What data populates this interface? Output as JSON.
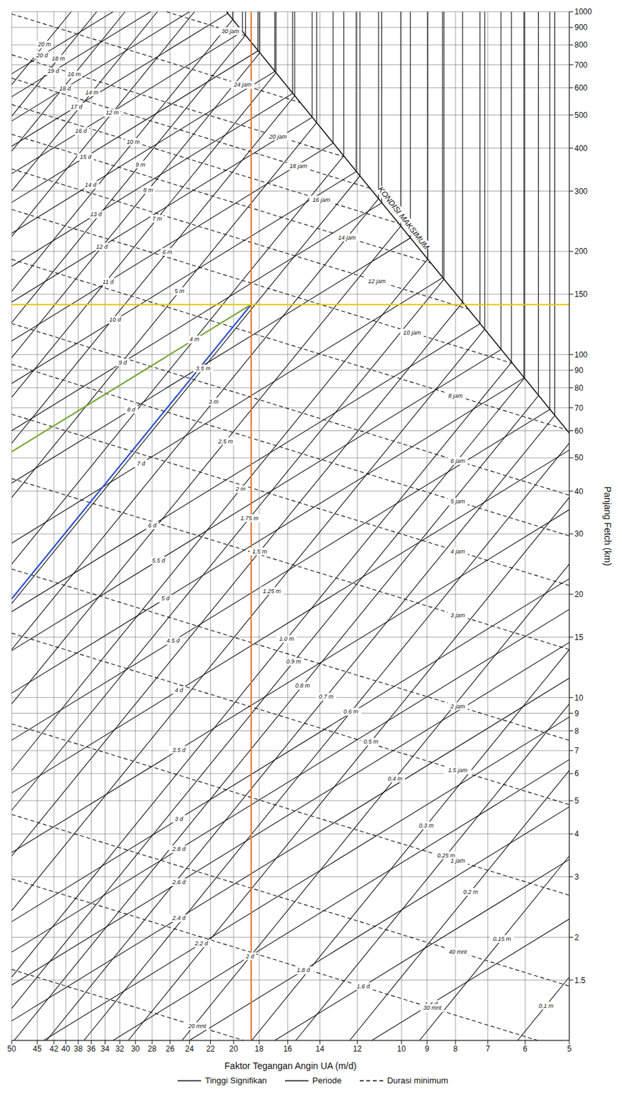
{
  "chart_data": {
    "type": "line",
    "xlabel": "Faktor Tegangan Angin UA (m/d)",
    "ylabel": "Panjang Fetch (km)",
    "log": true,
    "grid": true,
    "legend": "bottom",
    "xlim": [
      50,
      5
    ],
    "xticks": [
      50,
      45,
      42,
      40,
      38,
      36,
      34,
      32,
      30,
      28,
      26,
      24,
      22,
      20,
      18,
      16,
      14,
      12,
      10,
      9,
      8,
      7,
      6,
      5
    ],
    "ylim": [
      1,
      1000
    ],
    "yticks": [
      1.5,
      2,
      3,
      4,
      5,
      6,
      7,
      8,
      9,
      10,
      15,
      20,
      30,
      40,
      50,
      60,
      70,
      80,
      90,
      100,
      150,
      200,
      300,
      400,
      500,
      600,
      700,
      800,
      900,
      1000
    ],
    "series": [
      {
        "name": "Tinggi Signifikan",
        "color": "#111111",
        "line_style": "solid",
        "lines": [
          {
            "label": "0.1 m",
            "x": [
              6.19,
              5
            ],
            "y": [
              1,
              1.53
            ]
          },
          {
            "label": "0.15 m",
            "x": [
              9.28,
              5
            ],
            "y": [
              1,
              3.45
            ]
          },
          {
            "label": "0.2 m",
            "x": [
              12.38,
              5
            ],
            "y": [
              1,
              6.13
            ]
          },
          {
            "label": "0.25 m",
            "x": [
              15.47,
              5
            ],
            "y": [
              1,
              9.58
            ]
          },
          {
            "label": "0.3 m",
            "x": [
              18.56,
              5
            ],
            "y": [
              1,
              13.8
            ]
          },
          {
            "label": "0.4 m",
            "x": [
              24.75,
              5
            ],
            "y": [
              1,
              24.5
            ]
          },
          {
            "label": "0.5 m",
            "x": [
              30.9,
              5
            ],
            "y": [
              1,
              38.3
            ]
          },
          {
            "label": "0.6 m",
            "x": [
              37.1,
              5
            ],
            "y": [
              1,
              55.2
            ]
          },
          {
            "label": "0.7 m",
            "x": [
              43.3,
              5.31,
              5.31
            ],
            "y": [
              1,
              66.4,
              1000
            ]
          },
          {
            "label": "0.8 m",
            "x": [
              49.5,
              5.68,
              5.68
            ],
            "y": [
              1,
              75.9,
              1000
            ]
          },
          {
            "label": "0.9 m",
            "x": [
              50,
              6.02,
              6.02
            ],
            "y": [
              1.24,
              85.4,
              1000
            ]
          },
          {
            "label": "1.0 m",
            "x": [
              50,
              6.35,
              6.35
            ],
            "y": [
              1.53,
              94.9,
              1000
            ]
          },
          {
            "label": "1.25 m",
            "x": [
              50,
              7.09,
              7.09
            ],
            "y": [
              2.39,
              118.6,
              1000
            ]
          },
          {
            "label": "1.5 m",
            "x": [
              50,
              7.77,
              7.77
            ],
            "y": [
              3.45,
              142,
              1000
            ]
          },
          {
            "label": "1.75 m",
            "x": [
              50,
              8.39,
              8.39
            ],
            "y": [
              4.69,
              166,
              1000
            ]
          },
          {
            "label": "2 m",
            "x": [
              50,
              8.97,
              8.97
            ],
            "y": [
              6.13,
              190,
              1000
            ]
          },
          {
            "label": "2.5 m",
            "x": [
              50,
              10.03,
              10.03
            ],
            "y": [
              9.58,
              237,
              1000
            ]
          },
          {
            "label": "3 m",
            "x": [
              50,
              10.99,
              10.99
            ],
            "y": [
              13.8,
              285,
              1000
            ]
          },
          {
            "label": "3.5 m",
            "x": [
              50,
              11.87,
              11.87
            ],
            "y": [
              18.8,
              332,
              1000
            ]
          },
          {
            "label": "4 m",
            "x": [
              50,
              12.69,
              12.69
            ],
            "y": [
              24.5,
              380,
              1000
            ]
          },
          {
            "label": "5 m",
            "x": [
              50,
              14.19,
              14.19
            ],
            "y": [
              38.3,
              475,
              1000
            ]
          },
          {
            "label": "6 m",
            "x": [
              50,
              15.54,
              15.54
            ],
            "y": [
              55.2,
              569,
              1000
            ]
          },
          {
            "label": "7 m",
            "x": [
              50,
              16.79,
              16.79
            ],
            "y": [
              75.1,
              664,
              1000
            ]
          },
          {
            "label": "8 m",
            "x": [
              50,
              17.95,
              17.95
            ],
            "y": [
              98,
              759,
              1000
            ]
          },
          {
            "label": "9 m",
            "x": [
              50,
              19.04,
              19.04
            ],
            "y": [
              124,
              854,
              1000
            ]
          },
          {
            "label": "10 m",
            "x": [
              50,
              20.07,
              20.07
            ],
            "y": [
              153,
              949,
              1000
            ]
          },
          {
            "label": "12 m",
            "x": [
              50,
              23.5
            ],
            "y": [
              221,
              1000
            ]
          },
          {
            "label": "14 m",
            "x": [
              50,
              27.4
            ],
            "y": [
              300,
              1000
            ]
          },
          {
            "label": "16 m",
            "x": [
              50,
              31.3
            ],
            "y": [
              392,
              1000
            ]
          },
          {
            "label": "18 m",
            "x": [
              50,
              35.2
            ],
            "y": [
              496,
              1000
            ]
          },
          {
            "label": "20 m",
            "x": [
              50,
              39.1
            ],
            "y": [
              613,
              1000
            ]
          }
        ]
      },
      {
        "name": "Periode",
        "color": "#111111",
        "line_style": "solid",
        "lines": [
          {
            "label": "1.4 d",
            "x": [
              11.3,
              5
            ],
            "y": [
              1,
              2.26
            ]
          },
          {
            "label": "1.6 d",
            "x": [
              16.87,
              5
            ],
            "y": [
              1,
              3.37
            ]
          },
          {
            "label": "1.8 d",
            "x": [
              24.0,
              5
            ],
            "y": [
              1,
              4.8
            ]
          },
          {
            "label": "2 d",
            "x": [
              32.9,
              5
            ],
            "y": [
              1,
              6.59
            ]
          },
          {
            "label": "2.2 d",
            "x": [
              43.8,
              5
            ],
            "y": [
              1,
              8.77
            ]
          },
          {
            "label": "2.4 d",
            "x": [
              50,
              5
            ],
            "y": [
              1.14,
              11.39
            ]
          },
          {
            "label": "2.6 d",
            "x": [
              50,
              5
            ],
            "y": [
              1.45,
              14.48
            ]
          },
          {
            "label": "2.8 d",
            "x": [
              50,
              5
            ],
            "y": [
              1.81,
              18.08
            ]
          },
          {
            "label": "3 d",
            "x": [
              50,
              5
            ],
            "y": [
              2.22,
              22.2
            ]
          },
          {
            "label": "3.5 d",
            "x": [
              50,
              5
            ],
            "y": [
              3.53,
              35.3
            ]
          },
          {
            "label": "4 d",
            "x": [
              50,
              5
            ],
            "y": [
              5.27,
              52.7
            ]
          },
          {
            "label": "4.5 d",
            "x": [
              50,
              5.42,
              5.42
            ],
            "y": [
              7.51,
              69.2,
              1000
            ]
          },
          {
            "label": "5 d",
            "x": [
              50,
              6.03,
              6.03
            ],
            "y": [
              10.3,
              85.5,
              1000
            ]
          },
          {
            "label": "5.5 d",
            "x": [
              50,
              6.63,
              6.63
            ],
            "y": [
              13.7,
              103.4,
              1000
            ]
          },
          {
            "label": "6 d",
            "x": [
              50,
              7.23,
              7.23
            ],
            "y": [
              17.8,
              123,
              1000
            ]
          },
          {
            "label": "7 d",
            "x": [
              50,
              8.44,
              8.44
            ],
            "y": [
              28.2,
              167.5,
              1000
            ]
          },
          {
            "label": "8 d",
            "x": [
              50,
              9.64,
              9.64
            ],
            "y": [
              42.2,
              218.8,
              1000
            ]
          },
          {
            "label": "9 d",
            "x": [
              50,
              10.85,
              10.85
            ],
            "y": [
              60,
              276.9,
              1000
            ]
          },
          {
            "label": "10 d",
            "x": [
              50,
              12.05,
              12.05
            ],
            "y": [
              82.4,
              341.8,
              1000
            ]
          },
          {
            "label": "11 d",
            "x": [
              50,
              13.26,
              13.26
            ],
            "y": [
              109.6,
              413.6,
              1000
            ]
          },
          {
            "label": "12 d",
            "x": [
              50,
              14.46,
              14.46
            ],
            "y": [
              142.3,
              492.2,
              1000
            ]
          },
          {
            "label": "13 d",
            "x": [
              50,
              15.67,
              15.67
            ],
            "y": [
              181,
              577.6,
              1000
            ]
          },
          {
            "label": "14 d",
            "x": [
              50,
              16.87,
              16.87
            ],
            "y": [
              226,
              670,
              1000
            ]
          },
          {
            "label": "15 d",
            "x": [
              50,
              18.08,
              18.08
            ],
            "y": [
              278,
              769,
              1000
            ]
          },
          {
            "label": "16 d",
            "x": [
              50,
              19.28,
              19.28
            ],
            "y": [
              337,
              875,
              1000
            ]
          },
          {
            "label": "17 d",
            "x": [
              50,
              20.49,
              20.49
            ],
            "y": [
              405,
              988,
              1000
            ]
          },
          {
            "label": "18 d",
            "x": [
              50,
              24
            ],
            "y": [
              480,
              1000
            ]
          },
          {
            "label": "19 d",
            "x": [
              50,
              28.2
            ],
            "y": [
              565,
              1000
            ]
          },
          {
            "label": "20 d",
            "x": [
              50,
              32.9
            ],
            "y": [
              659,
              1000
            ]
          }
        ]
      },
      {
        "name": "Durasi minimum",
        "color": "#111111",
        "line_style": "dashed",
        "lines": [
          {
            "label": "20 mnt",
            "x": [
              50,
              19.2
            ],
            "y": [
              1.61,
              1
            ]
          },
          {
            "label": "30 mnt",
            "x": [
              50,
              5.7
            ],
            "y": [
              2.96,
              1
            ]
          },
          {
            "label": "40 mnt",
            "x": [
              50,
              5
            ],
            "y": [
              4.56,
              1.44
            ]
          },
          {
            "label": "1 jam",
            "x": [
              50,
              5
            ],
            "y": [
              8.38,
              2.65
            ]
          },
          {
            "label": "1.5 jam",
            "x": [
              50,
              5
            ],
            "y": [
              15.4,
              4.87
            ]
          },
          {
            "label": "2 jam",
            "x": [
              50,
              5
            ],
            "y": [
              23.7,
              7.5
            ]
          },
          {
            "label": "3 jam",
            "x": [
              50,
              5
            ],
            "y": [
              43.5,
              13.8
            ]
          },
          {
            "label": "4 jam",
            "x": [
              50,
              5
            ],
            "y": [
              67,
              21.2
            ]
          },
          {
            "label": "5 jam",
            "x": [
              50,
              5
            ],
            "y": [
              93.7,
              29.6
            ]
          },
          {
            "label": "6 jam",
            "x": [
              50,
              5
            ],
            "y": [
              123.2,
              38.9
            ]
          },
          {
            "label": "8 jam",
            "x": [
              50,
              5.06
            ],
            "y": [
              189.6,
              60.4
            ]
          },
          {
            "label": "10 jam",
            "x": [
              50,
              6.33
            ],
            "y": [
              265,
              94.3
            ]
          },
          {
            "label": "12 jam",
            "x": [
              50,
              7.59
            ],
            "y": [
              348,
              135.8
            ]
          },
          {
            "label": "14 jam",
            "x": [
              50,
              8.86
            ],
            "y": [
              439,
              184.8
            ]
          },
          {
            "label": "16 jam",
            "x": [
              50,
              10.12
            ],
            "y": [
              536,
              241.4
            ]
          },
          {
            "label": "18 jam",
            "x": [
              50,
              11.39
            ],
            "y": [
              640,
              305.5
            ]
          },
          {
            "label": "20 jam",
            "x": [
              50,
              12.65
            ],
            "y": [
              749,
              377.2
            ]
          },
          {
            "label": "24 jam",
            "x": [
              50,
              15.18
            ],
            "y": [
              985,
              543
            ]
          },
          {
            "label": "30 jam",
            "x": [
              26.4,
              18.98
            ],
            "y": [
              1000,
              848.7
            ]
          }
        ]
      }
    ],
    "boundary": {
      "label": "KONDISI MAKSIMUM",
      "color": "#111111",
      "x": [
        5,
        20.6
      ],
      "y": [
        59,
        1000
      ]
    },
    "highlights": [
      {
        "color": "#2a4fd0",
        "x": [
          18.6,
          50
        ],
        "y": [
          140,
          19.4
        ]
      },
      {
        "color": "#7aa83a",
        "x": [
          18.6,
          50
        ],
        "y": [
          140,
          52.1
        ]
      }
    ],
    "reference_lines": [
      {
        "axis": "x",
        "value": 18.6,
        "color": "#e8742a"
      },
      {
        "axis": "y",
        "value": 140,
        "color": "#e8c400"
      }
    ]
  }
}
